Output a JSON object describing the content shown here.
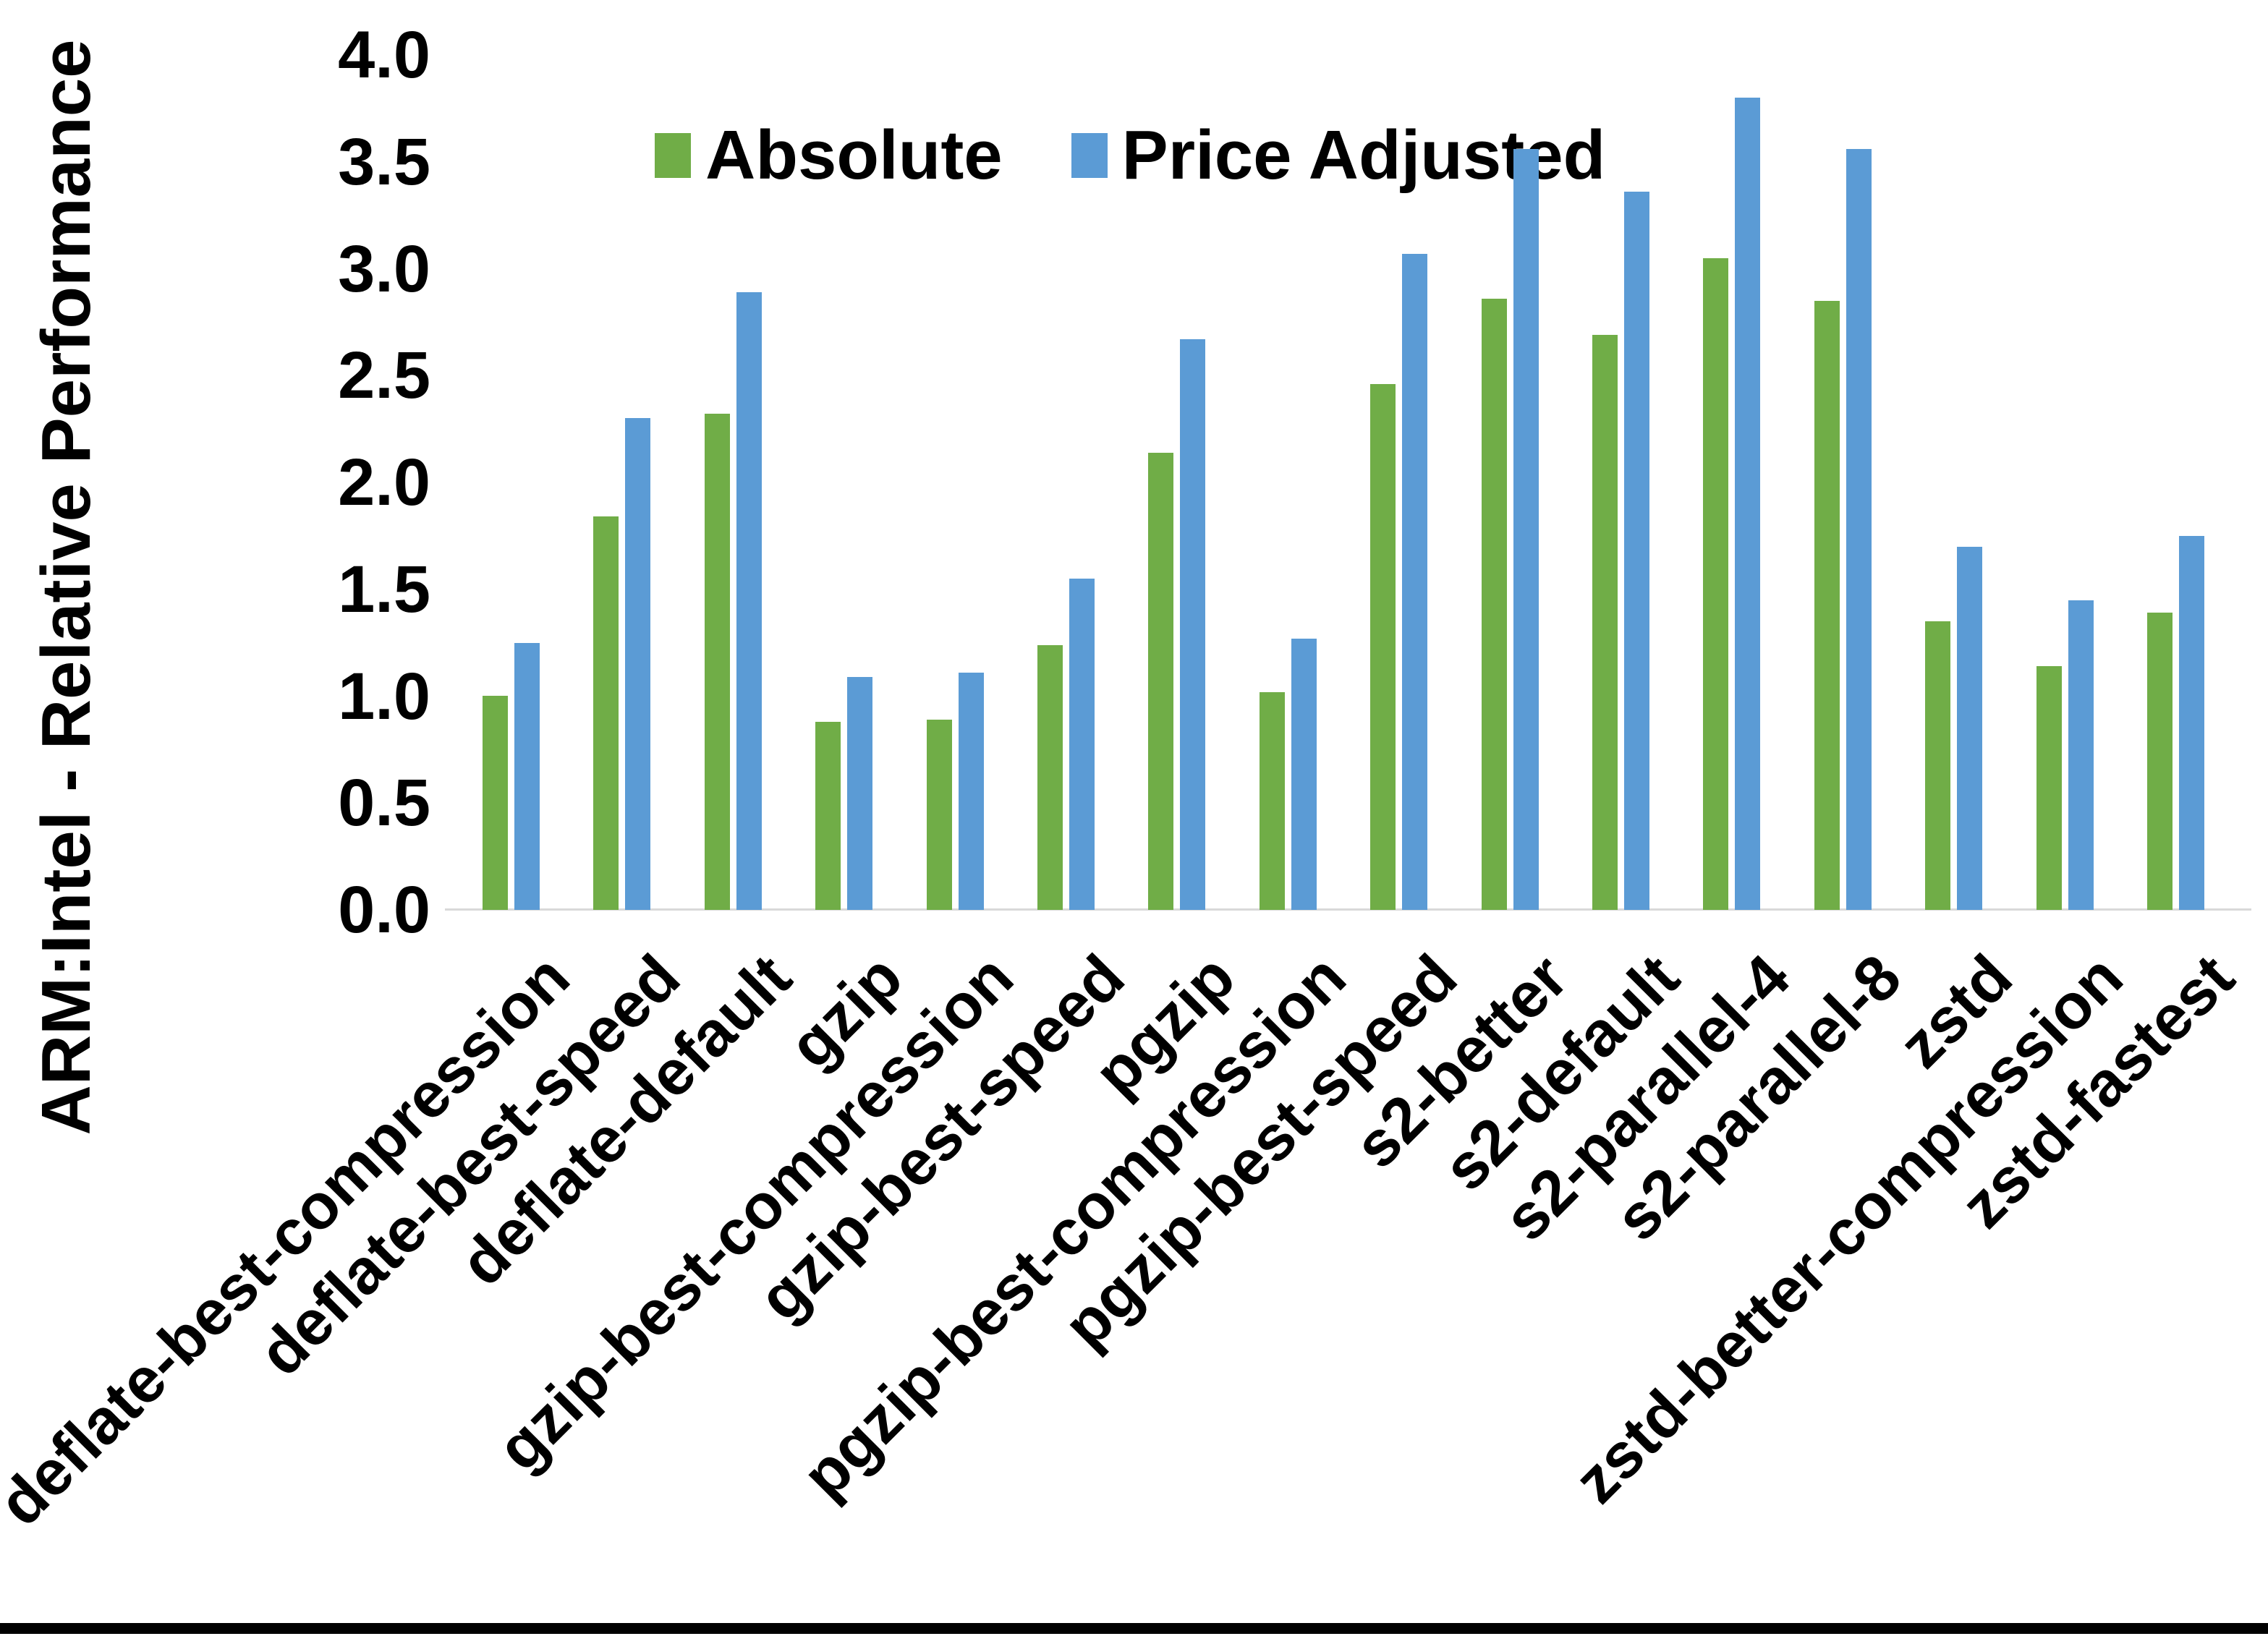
{
  "chart_data": {
    "type": "bar",
    "title": "",
    "xlabel": "",
    "ylabel": "ARM:Intel - Relative Performance",
    "ylim": [
      0.0,
      4.0
    ],
    "ytick_step": 0.5,
    "yticks": [
      "0.0",
      "0.5",
      "1.0",
      "1.5",
      "2.0",
      "2.5",
      "3.0",
      "3.5",
      "4.0"
    ],
    "grid": false,
    "legend_position": "top-center",
    "axis_line_color": "#d9d9d9",
    "categories": [
      "deflate-best-compression",
      "deflate-best-speed",
      "deflate-default",
      "gzip",
      "gzip-best-compression",
      "gzip-best-speed",
      "pgzip",
      "pgzip-best-compression",
      "pgzip-best-speed",
      "s2-better",
      "s2-default",
      "s2-parallel-4",
      "s2-parallel-8",
      "zstd",
      "zstd-better-compression",
      "zstd-fastest"
    ],
    "series": [
      {
        "name": "Absolute",
        "color": "#70AD47",
        "values": [
          1.0,
          1.84,
          2.32,
          0.88,
          0.89,
          1.24,
          2.14,
          1.02,
          2.46,
          2.86,
          2.69,
          3.05,
          2.85,
          1.35,
          1.14,
          1.39
        ]
      },
      {
        "name": "Price Adjusted",
        "color": "#5B9BD5",
        "values": [
          1.25,
          2.3,
          2.89,
          1.09,
          1.11,
          1.55,
          2.67,
          1.27,
          3.07,
          3.56,
          3.36,
          3.8,
          3.56,
          1.7,
          1.45,
          1.75
        ]
      }
    ]
  }
}
